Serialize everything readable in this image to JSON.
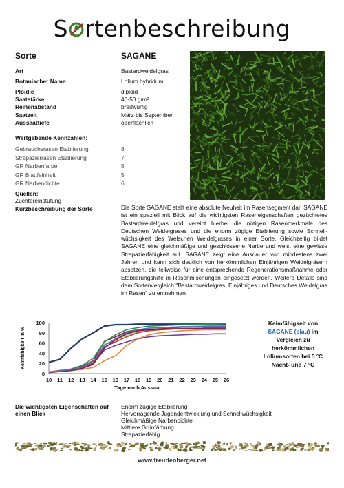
{
  "header": {
    "title_prefix": "S",
    "title_suffix": "rtenbeschreibung"
  },
  "sorte": {
    "label": "Sorte",
    "value": "SAGANE"
  },
  "fields": [
    {
      "label": "Art",
      "value": "Bastardweidelgras"
    },
    {
      "label": "Botanischer Name",
      "value": "Lolium hybridum"
    },
    {
      "label": "Ploidie",
      "value": "diploid"
    },
    {
      "label": "Saatstärke",
      "value": "40-50 g/m²"
    },
    {
      "label": "Reihenabstand",
      "value": "breitwürfig"
    },
    {
      "label": "Saatzeit",
      "value": "März bis September"
    },
    {
      "label": "Aussaattiefe",
      "value": "oberflächlich"
    }
  ],
  "ratings": {
    "heading": "Wertgebende Kennzahlen:",
    "items": [
      {
        "label": "Gebrauchsrasen Etablierung",
        "value": "8"
      },
      {
        "label": "Strapazierrasen Etablierung",
        "value": "7"
      },
      {
        "label": "GR Narbenfarbe",
        "value": "5"
      },
      {
        "label": "GR Blattfeinheit",
        "value": "5"
      },
      {
        "label": "GR Narbendichte",
        "value": "6"
      }
    ]
  },
  "quellen": {
    "label": "Quellen:",
    "value": "Züchtereinstufung"
  },
  "kurz": {
    "label": "Kurzbeschreibung der Sorte",
    "text": "Die Sorte SAGANE stellt eine absolute Neuheit im Rasensegment dar. SAGANE ist ein speziell mit Blick auf die wichtigsten Raseneigenschaften gezüchtetes Bastardweidelgras und vereint hierbei die nötigen Rasenmerkmale des Deutschen Weidelgrases und die enorm zügige Etablierung sowie Schnell-wüchsigkeit des Welschen Weidelgrases in einer Sorte. Gleichzeitig bildet SAGANE eine gleichmäßige und geschlossene Narbe und weist eine gewisse Strapazierfähigkeit auf. SAGANE zeigt eine Ausdauer von mindestens zwei Jahren und kann sich deutlich von herkömmlichen Einjährigen Weidelgräsern absetzen, die teilweise für eine entsprechende Regenerationsmaßnahme oder Etablierungshilfe in Rasenmischungen eingesetzt werden. Weitere Details sind dem Sortenvergleich \"Bastardweidelgras, Einjähriges und Deutsches Weidelgras im Rasen\" zu entnehmen."
  },
  "chart_data": {
    "type": "line",
    "xlabel": "Tage nach Aussaat",
    "ylabel": "Keimfähigkeit in %",
    "x": [
      10,
      11,
      12,
      13,
      14,
      15,
      16,
      17,
      18,
      19,
      20,
      21,
      22,
      23,
      24,
      25,
      26
    ],
    "ylim": [
      0,
      100
    ],
    "yticks": [
      0,
      20,
      40,
      60,
      80,
      100
    ],
    "grid": false,
    "series": [
      {
        "color": "#1f3a6e",
        "values": [
          22,
          28,
          50,
          68,
          80,
          93,
          96,
          96,
          97,
          97,
          97,
          97,
          97,
          97,
          97,
          97,
          97
        ]
      },
      {
        "color": "#8b1a1a",
        "values": [
          3,
          6,
          8,
          14,
          25,
          63,
          72,
          82,
          86,
          88,
          89,
          90,
          91,
          91,
          92,
          92,
          93
        ]
      },
      {
        "color": "#2e8b57",
        "values": [
          3,
          5,
          9,
          16,
          30,
          62,
          76,
          86,
          90,
          93,
          94,
          95,
          96,
          96,
          97,
          97,
          98
        ]
      },
      {
        "color": "#6a3d9a",
        "values": [
          3,
          5,
          7,
          10,
          20,
          46,
          55,
          62,
          68,
          72,
          74,
          75,
          76,
          77,
          77,
          78,
          78
        ]
      },
      {
        "color": "#e08a3c",
        "values": [
          2,
          4,
          6,
          8,
          12,
          25,
          35,
          55,
          68,
          76,
          80,
          82,
          84,
          85,
          86,
          86,
          86
        ]
      },
      {
        "color": "#a8d08d",
        "values": [
          3,
          5,
          7,
          12,
          22,
          58,
          66,
          75,
          82,
          87,
          90,
          91,
          92,
          93,
          93,
          94,
          94
        ]
      },
      {
        "color": "#c0392b",
        "values": [
          3,
          4,
          7,
          11,
          21,
          52,
          62,
          72,
          80,
          84,
          86,
          87,
          88,
          88,
          89,
          89,
          89
        ]
      },
      {
        "color": "#7f1f4a",
        "values": [
          2,
          4,
          6,
          10,
          18,
          50,
          66,
          78,
          84,
          86,
          87,
          88,
          88,
          88,
          89,
          89,
          89
        ]
      },
      {
        "color": "#5b6bbf",
        "values": [
          3,
          5,
          8,
          13,
          24,
          55,
          68,
          80,
          86,
          89,
          90,
          91,
          92,
          92,
          93,
          93,
          93
        ]
      }
    ]
  },
  "caption": {
    "line1": "Keimfähigkeit von",
    "sagane": "SAGANE (blau)",
    "line2": " im",
    "line3": "Vergleich zu",
    "line4": "herkömmlichen",
    "line5": "Loliumsorten bei 5 °C",
    "line6": "Nacht- und 7 °C"
  },
  "props": {
    "label": "Die wichtigsten Eigenschaften auf einen Blick",
    "items": [
      "Enorm zügige Etablierung",
      "Hervorragende Jugendentwicklung und Schnellwüchsigkeit",
      "Gleichmäßige Narbendichte",
      "Mittlere Grünfärbung",
      "Strapazierfähig"
    ]
  },
  "footer": {
    "url": "www.freudenberger.net"
  }
}
